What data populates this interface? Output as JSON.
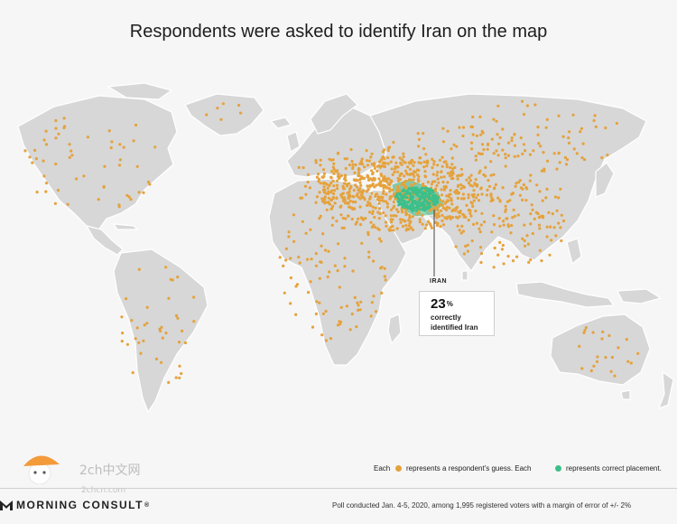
{
  "title": "Respondents were asked to identify Iran on the map",
  "callout": {
    "label": "IRAN",
    "percent": "23",
    "percent_sign": "%",
    "line1": "correctly",
    "line2": "identified Iran"
  },
  "legend": {
    "each_1": "Each",
    "guess_text": "represents a respondent's guess. Each",
    "correct_text": "represents correct placement.",
    "guess_color": "#e5a23c",
    "correct_color": "#3dbf8a"
  },
  "footer": {
    "brand": "MORNING CONSULT",
    "trademark": "®",
    "note": "Poll conducted Jan. 4-5, 2020, among 1,995 registered voters with a margin of error of +/- 2%"
  },
  "watermark": {
    "text": "2ch中文网",
    "sub": "2chcn.com"
  },
  "colors": {
    "land": "#d7d7d7",
    "background": "#f6f6f6",
    "iran": "#3dbf8a"
  }
}
